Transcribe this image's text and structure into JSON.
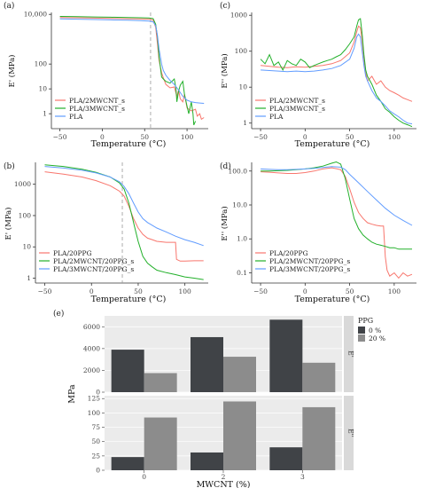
{
  "colors": {
    "red": "#f8766d",
    "green": "#22b02a",
    "blue": "#619cff",
    "dark_bar": "#404347",
    "light_bar": "#8c8c8c",
    "panel_bg": "#ebebeb",
    "grid": "#ffffff",
    "strip": "#d9d9d9"
  },
  "chart_data": [
    {
      "id": "a",
      "panel_label": "(a)",
      "type": "line",
      "xlabel": "Temperature (°C)",
      "ylabel": "E' (MPa)",
      "y_scale": "log",
      "xlim": [
        -60,
        125
      ],
      "ylim": [
        0.25,
        12000
      ],
      "x_ticks": [
        -50,
        0,
        50,
        100
      ],
      "x_tick_labels": [
        "−50",
        "0",
        "50",
        "100"
      ],
      "y_ticks": [
        1,
        10,
        100,
        10000
      ],
      "y_tick_labels": [
        "1",
        "10",
        "100",
        "10,000"
      ],
      "vline": 57,
      "legend": "bottom-left",
      "series": [
        {
          "name": "PLA/2MWCNT_s",
          "color": "red",
          "x": [
            -50,
            -30,
            -10,
            10,
            30,
            45,
            55,
            60,
            63,
            65,
            67,
            70,
            72,
            75,
            80,
            85,
            88,
            90,
            92,
            95,
            97,
            100,
            105,
            110,
            112,
            115,
            117,
            120
          ],
          "y": [
            7500,
            7300,
            7100,
            6900,
            6700,
            6550,
            6400,
            6000,
            3000,
            700,
            140,
            45,
            28,
            15,
            11,
            12,
            5,
            9,
            4,
            3,
            6,
            1.7,
            1.3,
            1.5,
            0.8,
            1.0,
            0.6,
            0.7
          ]
        },
        {
          "name": "PLA/3MWCNT_s",
          "color": "green",
          "x": [
            -50,
            -30,
            -10,
            10,
            30,
            45,
            55,
            60,
            63,
            65,
            67,
            70,
            72,
            75,
            80,
            85,
            87,
            88,
            90,
            92,
            95,
            97,
            100,
            102,
            105,
            107,
            108,
            110
          ],
          "y": [
            8300,
            8100,
            7900,
            7700,
            7500,
            7300,
            7150,
            6800,
            4000,
            1300,
            200,
            30,
            25,
            20,
            17,
            25,
            10,
            3,
            8,
            14,
            20,
            6,
            2,
            1,
            3,
            1,
            0.35,
            0.5
          ]
        },
        {
          "name": "PLA",
          "color": "blue",
          "x": [
            -50,
            -30,
            -10,
            10,
            30,
            45,
            55,
            60,
            63,
            65,
            67,
            70,
            72,
            75,
            80,
            85,
            90,
            95,
            100,
            105,
            110,
            115,
            120
          ],
          "y": [
            6600,
            6400,
            6200,
            6000,
            5800,
            5600,
            5400,
            5000,
            3500,
            1500,
            400,
            100,
            55,
            35,
            22,
            15,
            9,
            5,
            3.5,
            3,
            2.8,
            2.7,
            2.6
          ]
        }
      ]
    },
    {
      "id": "b",
      "panel_label": "(b)",
      "type": "line",
      "xlabel": "Temperature (°C)",
      "ylabel": "E' (MPa)",
      "y_scale": "log",
      "xlim": [
        -60,
        125
      ],
      "ylim": [
        0.7,
        5000
      ],
      "x_ticks": [
        -50,
        0,
        50,
        100
      ],
      "x_tick_labels": [
        "−50",
        "0",
        "50",
        "100"
      ],
      "y_ticks": [
        1,
        10,
        100,
        1000
      ],
      "y_tick_labels": [
        "1",
        "10",
        "100",
        "1000"
      ],
      "vline": 33,
      "legend": "bottom-left",
      "series": [
        {
          "name": "PLA/20PPG",
          "color": "red",
          "x": [
            -50,
            -30,
            -10,
            5,
            20,
            30,
            35,
            40,
            45,
            50,
            55,
            60,
            65,
            70,
            80,
            88,
            90,
            91,
            95,
            100,
            110,
            120
          ],
          "y": [
            2500,
            2100,
            1700,
            1300,
            900,
            600,
            420,
            200,
            80,
            40,
            25,
            19,
            17,
            15,
            14,
            14,
            14,
            4,
            3.5,
            3.5,
            3.6,
            3.6
          ]
        },
        {
          "name": "PLA/2MWCNT/20PPG_s",
          "color": "green",
          "x": [
            -50,
            -30,
            -10,
            5,
            20,
            30,
            35,
            40,
            45,
            50,
            55,
            60,
            65,
            70,
            80,
            90,
            100,
            110,
            120
          ],
          "y": [
            4200,
            3700,
            3000,
            2400,
            1700,
            1100,
            700,
            250,
            60,
            15,
            5,
            3,
            2.3,
            1.8,
            1.5,
            1.3,
            1.1,
            1.0,
            0.9
          ]
        },
        {
          "name": "PLA/3MWCNT/20PPG_s",
          "color": "blue",
          "x": [
            -50,
            -30,
            -10,
            5,
            20,
            30,
            35,
            40,
            45,
            50,
            55,
            60,
            70,
            80,
            90,
            100,
            110,
            120
          ],
          "y": [
            3700,
            3300,
            2800,
            2300,
            1700,
            1200,
            850,
            500,
            250,
            130,
            80,
            60,
            40,
            30,
            22,
            17,
            14,
            11
          ]
        }
      ]
    },
    {
      "id": "c",
      "panel_label": "(c)",
      "type": "line",
      "xlabel": "Temperature (°C)",
      "ylabel": "E'' (MPa)",
      "y_scale": "log",
      "xlim": [
        -60,
        125
      ],
      "ylim": [
        0.7,
        1200
      ],
      "x_ticks": [
        -50,
        0,
        50,
        100
      ],
      "x_tick_labels": [
        "−50",
        "0",
        "50",
        "100"
      ],
      "y_ticks": [
        1,
        10,
        100,
        1000
      ],
      "y_tick_labels": [
        "1",
        "10",
        "100",
        "1000"
      ],
      "legend": "bottom-left",
      "series": [
        {
          "name": "PLA/2MWCNT_s",
          "color": "red",
          "x": [
            -50,
            -40,
            -30,
            -20,
            -10,
            0,
            10,
            20,
            30,
            40,
            50,
            55,
            58,
            60,
            62,
            64,
            66,
            68,
            70,
            75,
            80,
            85,
            90,
            95,
            100,
            105,
            110,
            115,
            120
          ],
          "y": [
            40,
            38,
            36,
            35,
            37,
            36,
            38,
            40,
            45,
            55,
            90,
            180,
            350,
            500,
            450,
            200,
            60,
            25,
            15,
            20,
            12,
            15,
            10,
            8,
            7,
            6,
            5,
            4.5,
            4
          ]
        },
        {
          "name": "PLA/3MWCNT_s",
          "color": "green",
          "x": [
            -50,
            -45,
            -40,
            -35,
            -30,
            -25,
            -20,
            -15,
            -10,
            -5,
            0,
            5,
            10,
            15,
            20,
            25,
            30,
            35,
            40,
            45,
            50,
            55,
            58,
            60,
            62,
            64,
            66,
            68,
            70,
            75,
            80,
            85,
            90,
            95,
            100,
            105,
            110,
            115,
            120
          ],
          "y": [
            60,
            45,
            80,
            40,
            50,
            30,
            55,
            45,
            40,
            60,
            50,
            35,
            40,
            45,
            50,
            55,
            60,
            70,
            80,
            110,
            160,
            250,
            500,
            750,
            800,
            300,
            80,
            30,
            20,
            12,
            6,
            4,
            2.5,
            2,
            1.5,
            1.2,
            1.0,
            0.9,
            0.8
          ]
        },
        {
          "name": "PLA",
          "color": "blue",
          "x": [
            -50,
            -40,
            -30,
            -20,
            -10,
            0,
            10,
            20,
            30,
            40,
            50,
            55,
            58,
            60,
            62,
            64,
            66,
            68,
            70,
            75,
            80,
            85,
            90,
            95,
            100,
            105,
            110,
            115,
            120
          ],
          "y": [
            30,
            29,
            28,
            27,
            28,
            27,
            28,
            30,
            33,
            40,
            60,
            120,
            250,
            300,
            250,
            100,
            40,
            20,
            15,
            8,
            5,
            4,
            3,
            2.2,
            1.8,
            1.5,
            1.2,
            1.0,
            0.95
          ]
        }
      ]
    },
    {
      "id": "d",
      "panel_label": "(d)",
      "type": "line",
      "xlabel": "Temperature (°C)",
      "ylabel": "E'' (MPa)",
      "y_scale": "log",
      "xlim": [
        -60,
        125
      ],
      "ylim": [
        0.05,
        180
      ],
      "x_ticks": [
        -50,
        0,
        50,
        100
      ],
      "x_tick_labels": [
        "−50",
        "0",
        "50",
        "100"
      ],
      "y_ticks": [
        0.1,
        1,
        10,
        100
      ],
      "y_tick_labels": [
        "0.1",
        "1.0",
        "10.0",
        "100.0"
      ],
      "legend": "bottom-left",
      "series": [
        {
          "name": "PLA/20PPG",
          "color": "red",
          "x": [
            -50,
            -40,
            -30,
            -20,
            -10,
            0,
            10,
            20,
            30,
            40,
            45,
            50,
            55,
            60,
            65,
            70,
            75,
            80,
            85,
            88,
            90,
            92,
            95,
            100,
            105,
            110,
            115,
            120
          ],
          "y": [
            95,
            92,
            88,
            85,
            85,
            90,
            100,
            115,
            125,
            110,
            70,
            30,
            12,
            6,
            4,
            3,
            2.7,
            2.5,
            2.4,
            2.4,
            0.3,
            0.12,
            0.08,
            0.1,
            0.07,
            0.1,
            0.08,
            0.09
          ]
        },
        {
          "name": "PLA/2MWCNT/20PPG_s",
          "color": "green",
          "x": [
            -50,
            -40,
            -30,
            -20,
            -10,
            0,
            10,
            20,
            30,
            35,
            40,
            45,
            50,
            55,
            60,
            65,
            70,
            75,
            80,
            85,
            90,
            95,
            100,
            105,
            110,
            115,
            120
          ],
          "y": [
            100,
            100,
            102,
            105,
            110,
            115,
            125,
            140,
            170,
            185,
            160,
            60,
            15,
            4,
            2,
            1.3,
            1.0,
            0.8,
            0.7,
            0.65,
            0.6,
            0.55,
            0.55,
            0.5,
            0.5,
            0.5,
            0.5
          ]
        },
        {
          "name": "PLA/3MWCNT/20PPG_s",
          "color": "blue",
          "x": [
            -50,
            -40,
            -30,
            -20,
            -10,
            0,
            10,
            20,
            30,
            40,
            45,
            50,
            60,
            70,
            80,
            90,
            100,
            110,
            120
          ],
          "y": [
            115,
            112,
            110,
            110,
            112,
            115,
            120,
            128,
            135,
            130,
            110,
            80,
            45,
            25,
            14,
            8,
            5,
            3.5,
            2.5
          ]
        }
      ]
    },
    {
      "id": "e",
      "panel_label": "(e)",
      "type": "bar",
      "xlabel": "MWCNT (%)",
      "ylabel": "MPa",
      "categories": [
        "0",
        "2",
        "3"
      ],
      "legend": {
        "title": "PPG",
        "entries": [
          "0 %",
          "20 %"
        ]
      },
      "facets": [
        {
          "strip": "E'",
          "ylim": [
            0,
            7000
          ],
          "y_ticks": [
            0,
            2000,
            4000,
            6000
          ],
          "y_tick_labels": [
            "0",
            "2000",
            "4000",
            "6000"
          ],
          "series": [
            {
              "name": "0 %",
              "color": "dark_bar",
              "values": [
                3900,
                5050,
                6650
              ]
            },
            {
              "name": "20 %",
              "color": "light_bar",
              "values": [
                1750,
                3250,
                2700
              ]
            }
          ]
        },
        {
          "strip": "E''",
          "ylim": [
            0,
            130
          ],
          "y_ticks": [
            0,
            25,
            50,
            75,
            100,
            125
          ],
          "y_tick_labels": [
            "0",
            "25",
            "50",
            "75",
            "100",
            "125"
          ],
          "series": [
            {
              "name": "0 %",
              "color": "dark_bar",
              "values": [
                23,
                31,
                40
              ]
            },
            {
              "name": "20 %",
              "color": "light_bar",
              "values": [
                92,
                120,
                110
              ]
            }
          ]
        }
      ]
    }
  ]
}
